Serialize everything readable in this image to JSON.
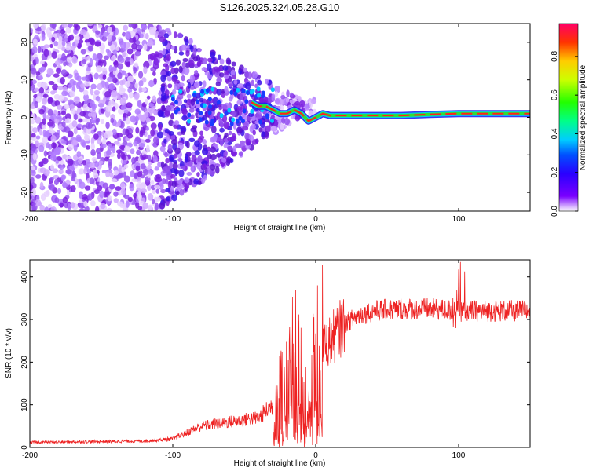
{
  "title": "S126.2025.324.05.28.G10",
  "colors": {
    "snr_line": "#ee2222",
    "track_core": "#ff2020",
    "track_mid": "#33dd33",
    "track_outer": "#2222ee",
    "scatter": "#7a1fe0"
  },
  "chart_data": [
    {
      "type": "heatmap",
      "name": "spectrogram",
      "xlabel": "Height of straight line (km)",
      "ylabel": "Frequency (Hz)",
      "xlim": [
        -200,
        150
      ],
      "ylim": [
        -25,
        25
      ],
      "xticks": [
        -200,
        -100,
        0,
        100
      ],
      "xtick_labels": [
        "-200",
        "-100",
        "0",
        "100"
      ],
      "yticks": [
        -20,
        -10,
        0,
        10,
        20
      ],
      "ytick_labels": [
        "-20",
        "-10",
        "0",
        "10",
        "20"
      ],
      "colorbar": {
        "label": "Normalized spectral amplitude",
        "range": [
          0,
          1
        ],
        "ticks": [
          0.0,
          0.2,
          0.4,
          0.6,
          0.8
        ],
        "tick_labels": [
          "0.0",
          "0.2",
          "0.4",
          "0.6",
          "0.8"
        ]
      },
      "dominant_frequency_track": {
        "x": [
          -45,
          -40,
          -35,
          -30,
          -25,
          -20,
          -15,
          -10,
          -5,
          0,
          5,
          10,
          20,
          30,
          40,
          60,
          80,
          100,
          120,
          150
        ],
        "y": [
          4,
          3,
          3,
          2,
          1,
          1,
          2,
          1,
          -1,
          0,
          1,
          0.5,
          0.5,
          0.5,
          0.5,
          0.5,
          0.8,
          1,
          1,
          1
        ]
      }
    },
    {
      "type": "line",
      "name": "snr",
      "xlabel": "Height of straight line (km)",
      "ylabel": "SNR (10 * v/v)",
      "xlim": [
        -200,
        150
      ],
      "ylim": [
        0,
        440
      ],
      "xticks": [
        -200,
        -100,
        0,
        100
      ],
      "xtick_labels": [
        "-200",
        "-100",
        "0",
        "100"
      ],
      "yticks": [
        0,
        100,
        200,
        300,
        400
      ],
      "ytick_labels": [
        "0",
        "100",
        "200",
        "300",
        "400"
      ],
      "envelope": {
        "x": [
          -200,
          -120,
          -100,
          -80,
          -60,
          -40,
          -30,
          -20,
          -15,
          -10,
          -5,
          0,
          5,
          10,
          20,
          30,
          40,
          60,
          80,
          100,
          120,
          150
        ],
        "y": [
          12,
          15,
          20,
          50,
          60,
          70,
          100,
          140,
          210,
          170,
          100,
          200,
          230,
          250,
          290,
          310,
          320,
          325,
          325,
          320,
          320,
          320
        ]
      }
    }
  ]
}
